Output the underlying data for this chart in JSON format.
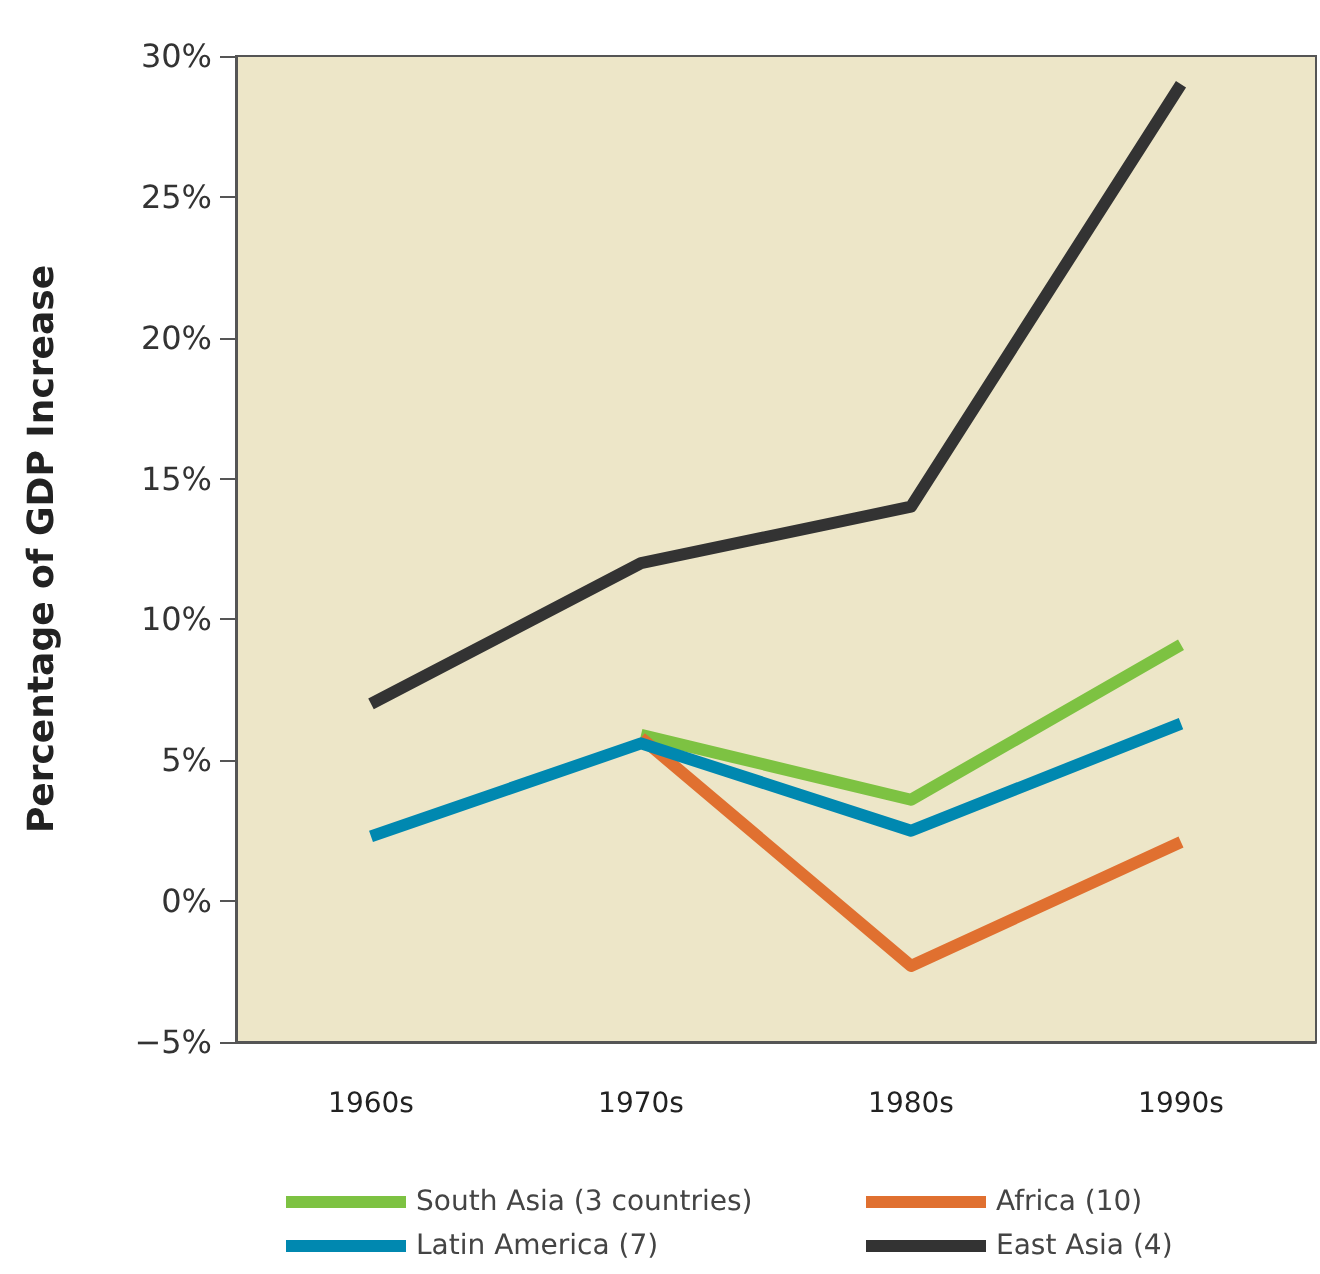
{
  "chart_data": {
    "type": "line",
    "ylabel": "Percentage of GDP Increase",
    "categories": [
      "1960s",
      "1970s",
      "1980s",
      "1990s"
    ],
    "series": [
      {
        "name": "South Asia (3 countries)",
        "color": "#7dc242",
        "values": [
          null,
          5.9,
          3.6,
          9.1
        ]
      },
      {
        "name": "Africa (10)",
        "color": "#e07030",
        "values": [
          null,
          5.8,
          -2.3,
          2.1
        ]
      },
      {
        "name": "Latin America (7)",
        "color": "#0088b0",
        "values": [
          2.3,
          5.6,
          2.5,
          6.3
        ]
      },
      {
        "name": "East Asia (4)",
        "color": "#333333",
        "values": [
          7,
          12,
          14,
          29
        ]
      }
    ],
    "ylim": [
      -5,
      30
    ],
    "yticks": [
      {
        "value": -5,
        "label": "−5%"
      },
      {
        "value": 0,
        "label": "0%"
      },
      {
        "value": 5,
        "label": "5%"
      },
      {
        "value": 10,
        "label": "10%"
      },
      {
        "value": 15,
        "label": "15%"
      },
      {
        "value": 20,
        "label": "20%"
      },
      {
        "value": 25,
        "label": "25%"
      },
      {
        "value": 30,
        "label": "30%"
      }
    ],
    "grid": false,
    "legend": "bottom",
    "marker": "none",
    "line_style": "solid"
  }
}
